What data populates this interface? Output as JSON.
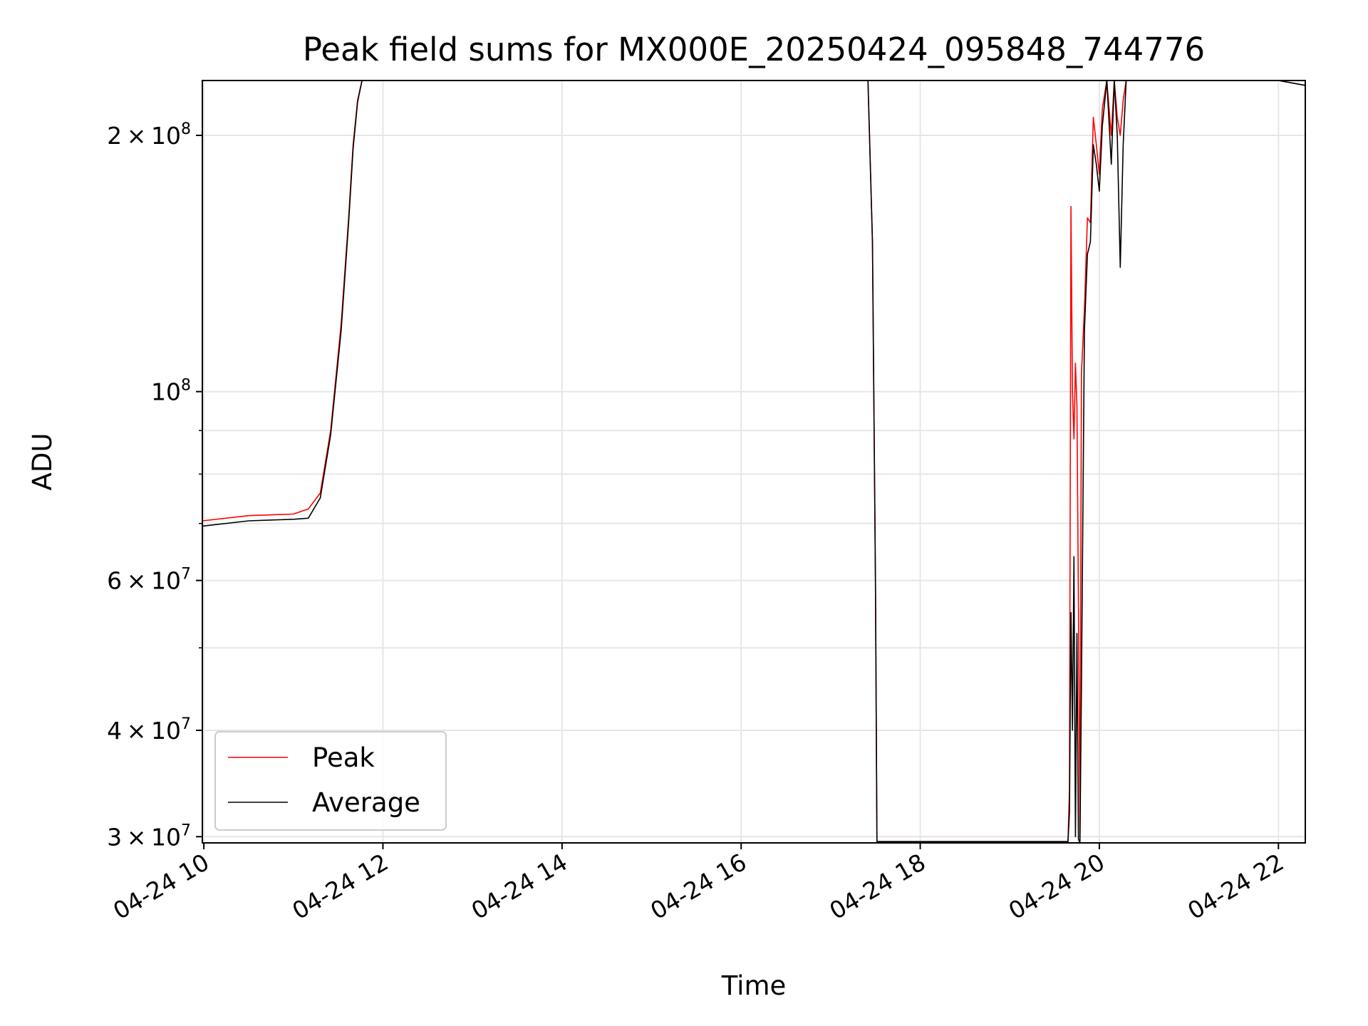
{
  "chart_data": {
    "type": "line",
    "title": "Peak field sums for MX000E_20250424_095848_744776",
    "xlabel": "Time",
    "ylabel": "ADU",
    "yscale": "log",
    "grid": true,
    "legend_position": "lower-left",
    "xlim": [
      "04-24 09:59",
      "04-24 22:18"
    ],
    "ylim": [
      29500000,
      232000000
    ],
    "x_ticks": [
      {
        "value": "04-24 10:00",
        "label": "04-24 10"
      },
      {
        "value": "04-24 12:00",
        "label": "04-24 12"
      },
      {
        "value": "04-24 14:00",
        "label": "04-24 14"
      },
      {
        "value": "04-24 16:00",
        "label": "04-24 16"
      },
      {
        "value": "04-24 18:00",
        "label": "04-24 18"
      },
      {
        "value": "04-24 20:00",
        "label": "04-24 20"
      },
      {
        "value": "04-24 22:00",
        "label": "04-24 22"
      }
    ],
    "y_ticks": [
      {
        "value": 30000000,
        "label": "3 × 10^7",
        "mantissa": "3",
        "exponent": "7"
      },
      {
        "value": 40000000,
        "label": "4 × 10^7",
        "mantissa": "4",
        "exponent": "7"
      },
      {
        "value": 60000000,
        "label": "6 × 10^7",
        "mantissa": "6",
        "exponent": "7"
      },
      {
        "value": 100000000,
        "label": "10^8",
        "mantissa": "",
        "exponent": "8"
      },
      {
        "value": 200000000,
        "label": "2 × 10^8",
        "mantissa": "2",
        "exponent": "8"
      }
    ],
    "y_minor_ticks": [
      50000000,
      70000000,
      80000000,
      90000000
    ],
    "series": [
      {
        "name": "Peak",
        "color": "#ff0000",
        "x": [
          "04-24 09:59",
          "04-24 10:30",
          "04-24 11:00",
          "04-24 11:10",
          "04-24 11:18",
          "04-24 11:25",
          "04-24 11:32",
          "04-24 11:37",
          "04-24 11:40",
          "04-24 11:43",
          "04-24 11:46",
          "04-24 12:00",
          "04-24 17:25",
          "04-24 17:28",
          "04-24 17:30",
          "04-24 17:31",
          "04-24 18:00",
          "04-24 19:39",
          "04-24 19:40",
          "04-24 19:41",
          "04-24 19:42",
          "04-24 19:43",
          "04-24 19:44",
          "04-24 19:45",
          "04-24 19:46",
          "04-24 19:47",
          "04-24 19:48",
          "04-24 19:50",
          "04-24 19:52",
          "04-24 19:54",
          "04-24 19:56",
          "04-24 19:58",
          "04-24 20:00",
          "04-24 20:02",
          "04-24 20:05",
          "04-24 20:08",
          "04-24 20:10",
          "04-24 20:12",
          "04-24 20:14",
          "04-24 20:16",
          "04-24 20:18",
          "04-24 20:20",
          "04-24 20:22",
          "04-24 22:00",
          "04-24 22:18"
        ],
        "y": [
          70500000,
          71500000,
          71800000,
          72800000,
          76000000,
          90000000,
          120000000,
          160000000,
          195000000,
          220000000,
          232000000,
          232000000,
          232000000,
          150000000,
          60000000,
          29600000,
          29600000,
          29600000,
          34000000,
          165000000,
          100000000,
          88000000,
          108000000,
          96000000,
          56000000,
          30000000,
          105000000,
          125000000,
          160000000,
          158000000,
          210000000,
          195000000,
          180000000,
          215000000,
          232000000,
          200000000,
          232000000,
          210000000,
          200000000,
          220000000,
          232000000,
          232000000,
          232000000,
          232000000,
          229000000
        ]
      },
      {
        "name": "Average",
        "color": "#000000",
        "x": [
          "04-24 09:59",
          "04-24 10:30",
          "04-24 11:00",
          "04-24 11:10",
          "04-24 11:18",
          "04-24 11:25",
          "04-24 11:32",
          "04-24 11:37",
          "04-24 11:40",
          "04-24 11:43",
          "04-24 11:46",
          "04-24 12:00",
          "04-24 17:25",
          "04-24 17:28",
          "04-24 17:30",
          "04-24 17:31",
          "04-24 18:00",
          "04-24 19:39",
          "04-24 19:40",
          "04-24 19:41",
          "04-24 19:42",
          "04-24 19:43",
          "04-24 19:44",
          "04-24 19:45",
          "04-24 19:46",
          "04-24 19:47",
          "04-24 19:48",
          "04-24 19:50",
          "04-24 19:52",
          "04-24 19:54",
          "04-24 19:56",
          "04-24 19:58",
          "04-24 20:00",
          "04-24 20:02",
          "04-24 20:05",
          "04-24 20:08",
          "04-24 20:10",
          "04-24 20:12",
          "04-24 20:14",
          "04-24 20:16",
          "04-24 20:18",
          "04-24 20:20",
          "04-24 20:22",
          "04-24 22:00",
          "04-24 22:18"
        ],
        "y": [
          69500000,
          70500000,
          70800000,
          71000000,
          75000000,
          89000000,
          118000000,
          158000000,
          193000000,
          219000000,
          232000000,
          232000000,
          232000000,
          150000000,
          60000000,
          29600000,
          29600000,
          29600000,
          32000000,
          55000000,
          40000000,
          64000000,
          30000000,
          52000000,
          29800000,
          29500000,
          45000000,
          118000000,
          145000000,
          150000000,
          195000000,
          185000000,
          172000000,
          205000000,
          232000000,
          185000000,
          232000000,
          200000000,
          140000000,
          195000000,
          232000000,
          232000000,
          232000000,
          232000000,
          229000000
        ]
      }
    ]
  }
}
